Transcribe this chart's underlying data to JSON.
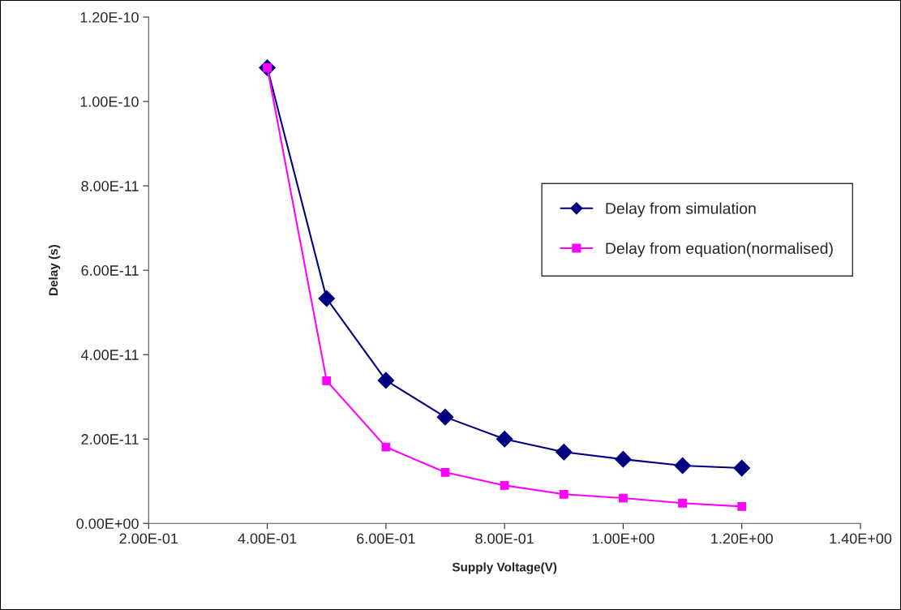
{
  "chart_data": {
    "type": "line",
    "xlabel": "Supply Voltage(V)",
    "ylabel": "Delay (s)",
    "x": [
      0.4,
      0.5,
      0.6,
      0.7,
      0.8,
      0.9,
      1.0,
      1.1,
      1.2
    ],
    "series": [
      {
        "name": "Delay from simulation",
        "color": "#000080",
        "marker": "diamond",
        "values": [
          1.08e-10,
          5.33e-11,
          3.39e-11,
          2.52e-11,
          2e-11,
          1.69e-11,
          1.52e-11,
          1.37e-11,
          1.31e-11
        ]
      },
      {
        "name": "Delay from equation(normalised)",
        "color": "#ff00ff",
        "marker": "square",
        "values": [
          1.08e-10,
          3.38e-11,
          1.81e-11,
          1.21e-11,
          9e-12,
          6.9e-12,
          6e-12,
          4.8e-12,
          4e-12
        ]
      }
    ],
    "xlim": [
      0.2,
      1.4
    ],
    "xticks": [
      {
        "value": 0.2,
        "label": "2.00E-01"
      },
      {
        "value": 0.4,
        "label": "4.00E-01"
      },
      {
        "value": 0.6,
        "label": "6.00E-01"
      },
      {
        "value": 0.8,
        "label": "8.00E-01"
      },
      {
        "value": 1.0,
        "label": "1.00E+00"
      },
      {
        "value": 1.2,
        "label": "1.20E+00"
      },
      {
        "value": 1.4,
        "label": "1.40E+00"
      }
    ],
    "ylim": [
      0,
      1.2e-10
    ],
    "yticks": [
      {
        "value": 0,
        "label": "0.00E+00"
      },
      {
        "value": 2e-11,
        "label": "2.00E-11"
      },
      {
        "value": 4e-11,
        "label": "4.00E-11"
      },
      {
        "value": 6e-11,
        "label": "6.00E-11"
      },
      {
        "value": 8e-11,
        "label": "8.00E-11"
      },
      {
        "value": 1e-10,
        "label": "1.00E-10"
      },
      {
        "value": 1.2e-10,
        "label": "1.20E-10"
      }
    ],
    "grid": false,
    "legend": "right",
    "line_style": "solid"
  }
}
